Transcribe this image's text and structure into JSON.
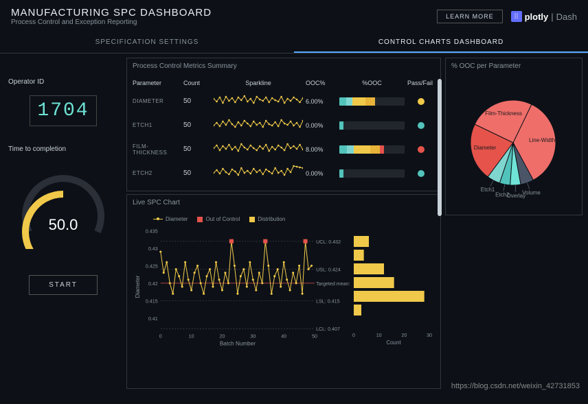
{
  "header": {
    "title": "MANUFACTURING SPC DASHBOARD",
    "subtitle": "Process Control and Exception Reporting",
    "learn_more": "LEARN MORE",
    "brand": "plotly",
    "brand_suffix": "Dash"
  },
  "tabs": {
    "spec": "SPECIFICATION SETTINGS",
    "charts": "CONTROL CHARTS DASHBOARD",
    "active": "charts"
  },
  "sidebar": {
    "operator_label": "Operator ID",
    "operator_id": "1704",
    "time_label": "Time to completion",
    "gauge_value": "50.0",
    "gauge_pct": 50,
    "start": "START"
  },
  "metrics_panel": {
    "title": "Process Control Metrics Summary",
    "headers": {
      "param": "Parameter",
      "count": "Count",
      "spark": "Sparkline",
      "oocpct": "OOC%",
      "ooc": "%OOC",
      "passfail": "Pass/Fail"
    },
    "rows": [
      {
        "param": "DIAMETER",
        "count": "50",
        "ooc_pct": "6.00%",
        "pass_color": "#f0c94a",
        "bar": [
          {
            "c": "#52c3bb",
            "w": 10
          },
          {
            "c": "#7fd6cf",
            "w": 10
          },
          {
            "c": "#f0c94a",
            "w": 20
          },
          {
            "c": "#e8b339",
            "w": 15
          },
          {
            "c": "#21262d",
            "w": 45
          }
        ],
        "spark": [
          12,
          8,
          14,
          6,
          15,
          9,
          13,
          7,
          14,
          10,
          16,
          8,
          12,
          6,
          15,
          11,
          9,
          14,
          7,
          13,
          10,
          8,
          15,
          6,
          12,
          9,
          14,
          11,
          7,
          13
        ]
      },
      {
        "param": "ETCH1",
        "count": "50",
        "ooc_pct": "0.00%",
        "pass_color": "#52c3bb",
        "bar": [
          {
            "c": "#52c3bb",
            "w": 6
          },
          {
            "c": "#21262d",
            "w": 94
          }
        ],
        "spark": [
          8,
          12,
          7,
          14,
          9,
          16,
          10,
          6,
          13,
          8,
          15,
          11,
          7,
          14,
          9,
          12,
          6,
          15,
          10,
          8,
          13,
          7,
          16,
          11,
          9,
          14,
          8,
          12,
          6,
          15
        ]
      },
      {
        "param": "FILM-THICKNESS",
        "count": "50",
        "ooc_pct": "8.00%",
        "pass_color": "#e5534b",
        "bar": [
          {
            "c": "#52c3bb",
            "w": 12
          },
          {
            "c": "#7fd6cf",
            "w": 10
          },
          {
            "c": "#f0c94a",
            "w": 25
          },
          {
            "c": "#e8b339",
            "w": 15
          },
          {
            "c": "#e5534b",
            "w": 6
          },
          {
            "c": "#21262d",
            "w": 32
          }
        ],
        "spark": [
          10,
          14,
          7,
          13,
          9,
          15,
          8,
          12,
          6,
          16,
          11,
          8,
          14,
          10,
          7,
          13,
          9,
          15,
          6,
          12,
          8,
          14,
          11,
          7,
          16,
          10,
          13,
          9,
          15,
          8
        ]
      },
      {
        "param": "ETCH2",
        "count": "50",
        "ooc_pct": "0.00%",
        "pass_color": "#52c3bb",
        "bar": [
          {
            "c": "#52c3bb",
            "w": 6
          },
          {
            "c": "#21262d",
            "w": 94
          }
        ],
        "spark": [
          9,
          13,
          8,
          15,
          10,
          7,
          14,
          11,
          6,
          16,
          9,
          12,
          8,
          15,
          10,
          13,
          7,
          14,
          11,
          8,
          16,
          9,
          12,
          6,
          15,
          10,
          19,
          18,
          17,
          16
        ]
      }
    ]
  },
  "pie_panel": {
    "title": "% OOC per Parameter",
    "slices": [
      {
        "label": "Line-Width",
        "value": 35,
        "color": "#ef6e6a"
      },
      {
        "label": "Volume",
        "value": 5,
        "color": "#4a5568"
      },
      {
        "label": "Overlay",
        "value": 4,
        "color": "#6fe3d6"
      },
      {
        "label": "Etch2",
        "value": 4,
        "color": "#52c3bb"
      },
      {
        "label": "Etch1",
        "value": 5,
        "color": "#7fd6cf"
      },
      {
        "label": "Diameter",
        "value": 22,
        "color": "#e5534b"
      },
      {
        "label": "Film-Thickness",
        "value": 25,
        "color": "#ef6e6a"
      }
    ]
  },
  "spc_panel": {
    "title": "Live SPC Chart",
    "legend": {
      "diameter": "Diameter",
      "ooc": "Out of Control",
      "dist": "Distribution"
    },
    "colors": {
      "line": "#f0c94a",
      "ooc": "#e5534b",
      "dist": "#f0c94a",
      "grid": "#3a3f47",
      "mean_line": "#e5534b"
    },
    "ylabel": "Diameter",
    "xlabel": "Batch Number",
    "hist_xlabel": "Count",
    "yticks": [
      0.41,
      0.415,
      0.42,
      0.425,
      0.43,
      0.435
    ],
    "xticks": [
      0,
      10,
      20,
      30,
      40,
      50
    ],
    "hist_xticks": [
      0,
      10,
      20,
      30
    ],
    "annotations": [
      {
        "label": "UCL: 0.432",
        "y": 0.432
      },
      {
        "label": "USL: 0.424",
        "y": 0.424
      },
      {
        "label": "Targeted mean: 0.42",
        "y": 0.42
      },
      {
        "label": "LSL: 0.415",
        "y": 0.415
      },
      {
        "label": "LCL: 0.407",
        "y": 0.407
      }
    ],
    "data": [
      0.429,
      0.423,
      0.426,
      0.42,
      0.417,
      0.424,
      0.422,
      0.419,
      0.426,
      0.421,
      0.418,
      0.423,
      0.425,
      0.42,
      0.417,
      0.422,
      0.424,
      0.419,
      0.426,
      0.421,
      0.418,
      0.423,
      0.42,
      0.432,
      0.425,
      0.417,
      0.422,
      0.424,
      0.419,
      0.426,
      0.421,
      0.418,
      0.423,
      0.42,
      0.432,
      0.425,
      0.417,
      0.422,
      0.424,
      0.419,
      0.426,
      0.421,
      0.418,
      0.423,
      0.42,
      0.425,
      0.417,
      0.432,
      0.424,
      0.425
    ],
    "ooc_idx": [
      23,
      34,
      47
    ],
    "hist": [
      {
        "y": 0.432,
        "c": 6
      },
      {
        "y": 0.428,
        "c": 4
      },
      {
        "y": 0.424,
        "c": 12
      },
      {
        "y": 0.42,
        "c": 16
      },
      {
        "y": 0.416,
        "c": 28
      },
      {
        "y": 0.412,
        "c": 3
      }
    ]
  },
  "watermark": "https://blog.csdn.net/weixin_42731853"
}
